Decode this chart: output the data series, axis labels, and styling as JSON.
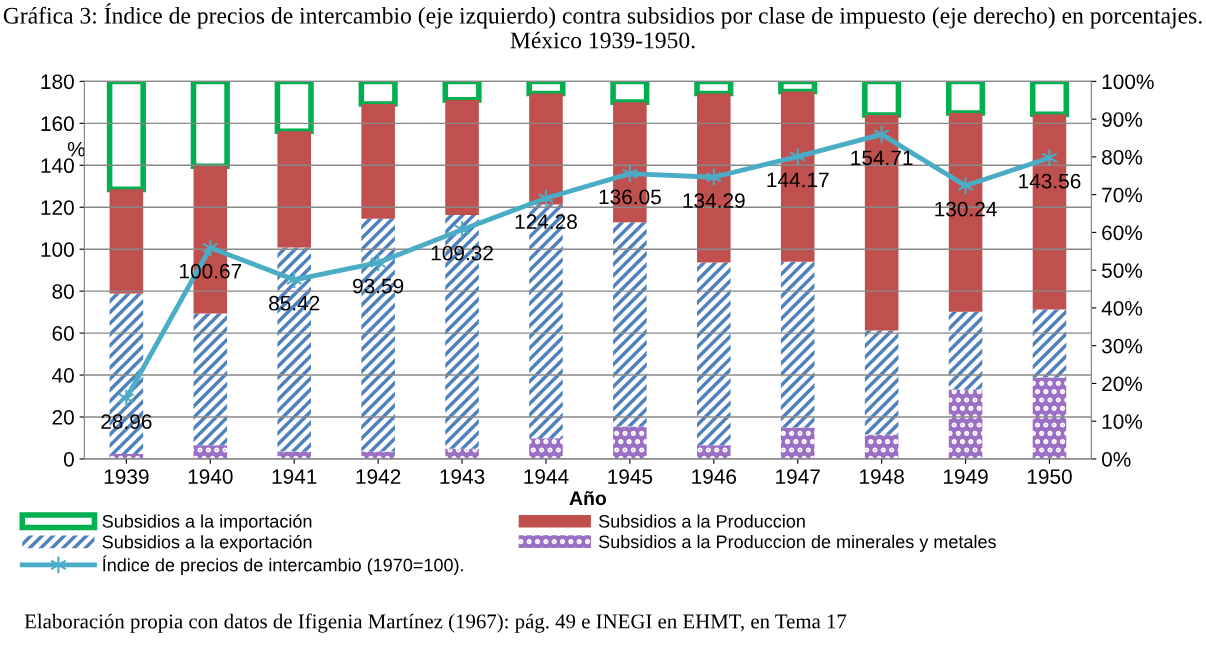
{
  "chart_data": {
    "type": "bar",
    "stacked": true,
    "title": "Gráfica 3: Índice de precios de intercambio (eje izquierdo) contra subsidios por clase de impuesto (eje derecho) en porcentajes. México 1939-1950.",
    "xlabel": "Año",
    "ylabel": "%",
    "categories": [
      "1939",
      "1940",
      "1941",
      "1942",
      "1943",
      "1944",
      "1945",
      "1946",
      "1947",
      "1948",
      "1949",
      "1950"
    ],
    "series": [
      {
        "name": "Subsidios a la Produccion de minerales y metales",
        "color": "#9b6fc4",
        "axis": "y2",
        "values": [
          1.3,
          3.6,
          2.0,
          2.0,
          2.7,
          5.5,
          8.6,
          3.6,
          8.3,
          6.5,
          18.4,
          21.6
        ]
      },
      {
        "name": "Subsidios a la exportación",
        "color": "#4f81bd",
        "axis": "y2",
        "values": [
          42.5,
          34.9,
          54.0,
          61.6,
          61.9,
          61.9,
          54.1,
          48.4,
          43.9,
          27.5,
          20.6,
          18.0
        ]
      },
      {
        "name": "Subsidios a la Produccion",
        "color": "#c0504d",
        "axis": "y2",
        "values": [
          27.6,
          39.0,
          30.8,
          30.4,
          30.5,
          29.4,
          31.8,
          44.8,
          45.1,
          57.1,
          52.6,
          51.7
        ]
      },
      {
        "name": "Subsidios a la importación",
        "color": "#00b050",
        "axis": "y2",
        "values": [
          28.6,
          22.5,
          13.2,
          6.0,
          4.9,
          3.2,
          5.5,
          3.2,
          2.7,
          8.9,
          8.4,
          8.7
        ]
      },
      {
        "name": "Índice de precios de intercambio (1970=100).",
        "type": "line",
        "color": "#4bacc6",
        "axis": "y",
        "marker": "cross",
        "data_labels": true,
        "values": [
          28.96,
          100.67,
          85.42,
          93.59,
          109.32,
          124.28,
          136.05,
          134.29,
          144.17,
          154.71,
          130.24,
          143.56
        ]
      }
    ],
    "ylim": [
      0,
      180
    ],
    "yticks": [
      0,
      20,
      40,
      60,
      80,
      100,
      120,
      140,
      160,
      180
    ],
    "y2lim": [
      0,
      100
    ],
    "y2ticks": [
      {
        "value": 0,
        "label": "0%"
      },
      {
        "value": 10,
        "label": "10%"
      },
      {
        "value": 20,
        "label": "20%"
      },
      {
        "value": 30,
        "label": "30%"
      },
      {
        "value": 40,
        "label": "40%"
      },
      {
        "value": 50,
        "label": "50%"
      },
      {
        "value": 60,
        "label": "60%"
      },
      {
        "value": 70,
        "label": "70%"
      },
      {
        "value": 80,
        "label": "80%"
      },
      {
        "value": 90,
        "label": "90%"
      },
      {
        "value": 100,
        "label": "100%"
      }
    ],
    "grid": "y",
    "legend": "bottom",
    "annotations": [
      "Elaboración propia con datos de Ifigenia Martínez (1967): pág. 49 e INEGI en EHMT, en Tema 17"
    ]
  }
}
